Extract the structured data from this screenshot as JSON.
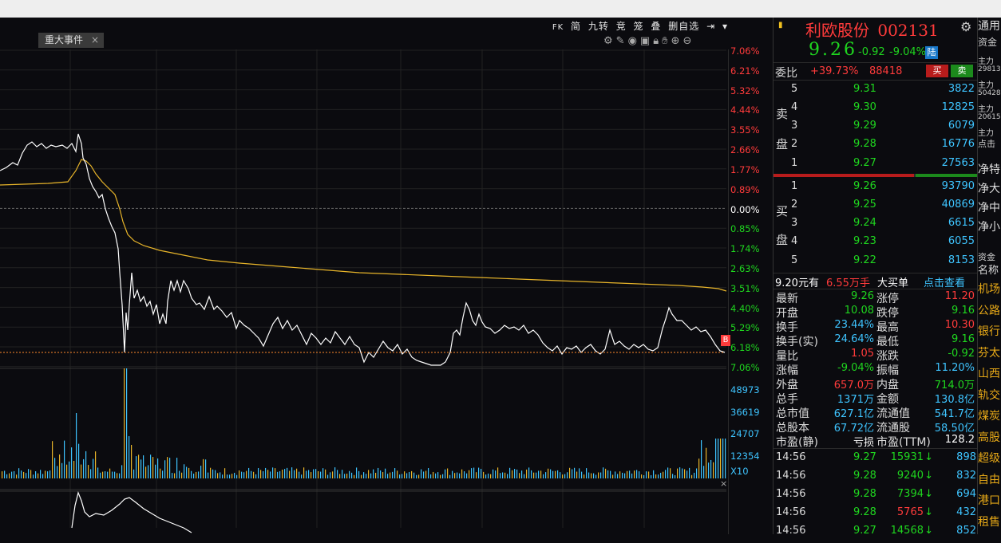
{
  "toolbar": {
    "fk": "FK",
    "simple": "简",
    "nine": "九转",
    "auction": "竞",
    "basket": "笼",
    "stack": "叠",
    "remove_watch": "删自选"
  },
  "event_tab": {
    "label": "重大事件",
    "close": "×"
  },
  "axis": {
    "price_pcts": [
      {
        "t": "7.06%",
        "c": "red"
      },
      {
        "t": "6.21%",
        "c": "red"
      },
      {
        "t": "5.32%",
        "c": "red"
      },
      {
        "t": "4.44%",
        "c": "red"
      },
      {
        "t": "3.55%",
        "c": "red"
      },
      {
        "t": "2.66%",
        "c": "red"
      },
      {
        "t": "1.77%",
        "c": "red"
      },
      {
        "t": "0.89%",
        "c": "red"
      },
      {
        "t": "0.00%",
        "c": "white"
      },
      {
        "t": "0.85%",
        "c": "green"
      },
      {
        "t": "1.74%",
        "c": "green"
      },
      {
        "t": "2.63%",
        "c": "green"
      },
      {
        "t": "3.51%",
        "c": "green"
      },
      {
        "t": "4.40%",
        "c": "green"
      },
      {
        "t": "5.29%",
        "c": "green"
      },
      {
        "t": "6.18%",
        "c": "green"
      },
      {
        "t": "7.06%",
        "c": "green"
      }
    ],
    "volume": [
      "48973",
      "36619",
      "24707",
      "12354"
    ],
    "volume_scale": "X10",
    "close_marker": "B"
  },
  "stock": {
    "name": "利欧股份",
    "code": "002131",
    "price": "9.26",
    "change": "-0.92",
    "change_pct": "-9.04%",
    "board": "陆"
  },
  "order_ratio": {
    "label": "委比",
    "ratio": "+39.73%",
    "diff": "88418",
    "buy": "买",
    "sell": "卖"
  },
  "sell_side_label": [
    "卖",
    "盘"
  ],
  "buy_side_label": [
    "买",
    "盘"
  ],
  "asks": [
    {
      "lvl": "5",
      "price": "9.31",
      "vol": "3822"
    },
    {
      "lvl": "4",
      "price": "9.30",
      "vol": "12825"
    },
    {
      "lvl": "3",
      "price": "9.29",
      "vol": "6079"
    },
    {
      "lvl": "2",
      "price": "9.28",
      "vol": "16776"
    },
    {
      "lvl": "1",
      "price": "9.27",
      "vol": "27563"
    }
  ],
  "bids": [
    {
      "lvl": "1",
      "price": "9.26",
      "vol": "93790"
    },
    {
      "lvl": "2",
      "price": "9.25",
      "vol": "40869"
    },
    {
      "lvl": "3",
      "price": "9.24",
      "vol": "6615"
    },
    {
      "lvl": "4",
      "price": "9.23",
      "vol": "6055"
    },
    {
      "lvl": "5",
      "price": "9.22",
      "vol": "8153"
    }
  ],
  "big_order": {
    "price_text": "9.20元有",
    "amount": "6.55万手",
    "label": "大买单",
    "link": "点击查看"
  },
  "stats": [
    {
      "l1": "最新",
      "v1": "9.26",
      "c1": "green",
      "l2": "涨停",
      "v2": "11.20",
      "c2": "red"
    },
    {
      "l1": "开盘",
      "v1": "10.08",
      "c1": "green",
      "l2": "跌停",
      "v2": "9.16",
      "c2": "green"
    },
    {
      "l1": "换手",
      "v1": "23.44%",
      "c1": "cyan",
      "l2": "最高",
      "v2": "10.30",
      "c2": "red"
    },
    {
      "l1": "换手(实)",
      "v1": "24.64%",
      "c1": "cyan",
      "l2": "最低",
      "v2": "9.16",
      "c2": "green"
    },
    {
      "l1": "量比",
      "v1": "1.05",
      "c1": "red",
      "l2": "涨跌",
      "v2": "-0.92",
      "c2": "green"
    },
    {
      "l1": "涨幅",
      "v1": "-9.04%",
      "c1": "green",
      "l2": "振幅",
      "v2": "11.20%",
      "c2": "cyan"
    },
    {
      "l1": "外盘",
      "v1": "657.0万",
      "c1": "red",
      "l2": "内盘",
      "v2": "714.0万",
      "c2": "green"
    },
    {
      "l1": "总手",
      "v1": "1371万",
      "c1": "cyan",
      "l2": "金额",
      "v2": "130.8亿",
      "c2": "cyan"
    },
    {
      "l1": "总市值",
      "v1": "627.1亿",
      "c1": "cyan",
      "l2": "流通值",
      "v2": "541.7亿",
      "c2": "cyan"
    },
    {
      "l1": "总股本",
      "v1": "67.72亿",
      "c1": "cyan",
      "l2": "流通股",
      "v2": "58.50亿",
      "c2": "cyan"
    },
    {
      "l1": "市盈(静)",
      "v1": "亏损",
      "c1": "white",
      "l2": "市盈(TTM)",
      "v2": "128.2",
      "c2": "white"
    }
  ],
  "ticks": [
    {
      "time": "14:56",
      "price": "9.27",
      "vol": "15931",
      "dir": "down",
      "n": "898"
    },
    {
      "time": "14:56",
      "price": "9.28",
      "vol": "9240",
      "dir": "down",
      "n": "832"
    },
    {
      "time": "14:56",
      "price": "9.28",
      "vol": "7394",
      "dir": "down",
      "n": "694"
    },
    {
      "time": "14:56",
      "price": "9.28",
      "vol": "5765",
      "dir": "down_red",
      "n": "432"
    },
    {
      "time": "14:56",
      "price": "9.27",
      "vol": "14568",
      "dir": "down",
      "n": "852"
    }
  ],
  "far_right": {
    "header": "通用",
    "fund": "资金",
    "main1": "主力",
    "main1_v": "29813",
    "main2": "主力",
    "main2_v": "50428",
    "main3": "主力",
    "main3_v": "20615",
    "main4": "主力",
    "click": "点击",
    "net_items": [
      "净特",
      "净大",
      "净中",
      "净小"
    ],
    "fund2": "资金",
    "name": "名称",
    "sectors": [
      "机场",
      "公路",
      "银行",
      "芬太",
      "山西",
      "轨交",
      "煤炭",
      "高股",
      "超级",
      "自由",
      "港口",
      "租售"
    ]
  },
  "colors": {
    "red": "#ff3b3b",
    "green": "#1fd61f",
    "price_line": "#ffffff",
    "avg_line": "#e8b52a",
    "cyan": "#3ec4ff"
  }
}
